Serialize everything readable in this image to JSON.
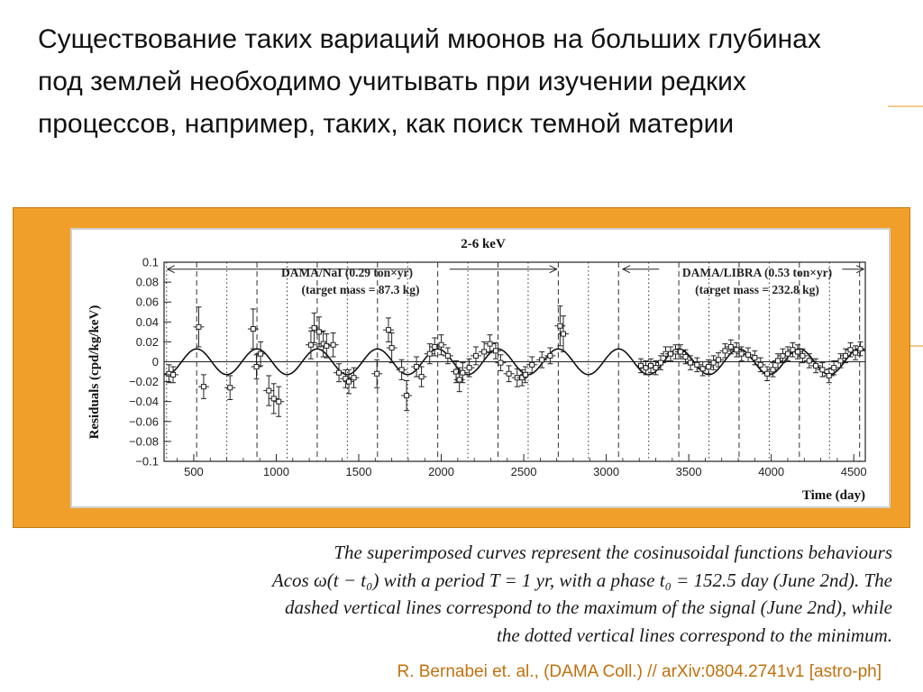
{
  "slide": {
    "title": "Существование таких вариаций мюонов на больших глубинах под землей необходимо учитывать  при изучении редких процессов, например, таких, как поиск темной материи",
    "caption_line1": "The superimposed curves represent the cosinusoidal functions behaviours",
    "caption_line2": "Acos ω(t − t₀) with a period T = 1 yr, with a phase t₀ = 152.5 day (June 2nd). The",
    "caption_line3": "dashed vertical lines correspond to the maximum of the signal (June 2nd), while",
    "caption_line4": "the dotted vertical lines correspond to the minimum.",
    "reference": "R. Bernabei  et. al., (DAMA Coll.) // arXiv:0804.2741v1 [astro-ph]"
  },
  "colors": {
    "frame": "#f0a02a",
    "reference_text": "#c2700e",
    "accent_lines": "#f1c98a"
  },
  "chart_data": {
    "type": "scatter",
    "title": "2-6 keV",
    "xlabel": "Time (day)",
    "ylabel": "Residuals (cpd/kg/keV)",
    "xlim": [
      320,
      4570
    ],
    "ylim": [
      -0.1,
      0.1
    ],
    "x_ticks": [
      500,
      1000,
      1500,
      2000,
      2500,
      3000,
      3500,
      4000,
      4500
    ],
    "y_ticks": [
      0.1,
      0.08,
      0.06,
      0.04,
      0.02,
      0,
      -0.02,
      -0.04,
      -0.06,
      -0.08,
      -0.1
    ],
    "grid": false,
    "annotations": {
      "nai_label": "DAMA/NaI (0.29 ton×yr)",
      "nai_mass": "(target mass = 87.3 kg)",
      "libra_label": "DAMA/LIBRA (0.53 ton×yr)",
      "libra_mass": "(target mass = 232.8 kg)"
    },
    "fit": {
      "amplitude": 0.0129,
      "period_days": 365.25,
      "phase_day": 152.5
    },
    "maxima_days": [
      152.5,
      517.75,
      883,
      1248.25,
      1613.5,
      1978.75,
      2344,
      2709.25,
      3074.5,
      3439.75,
      3805,
      4170.25,
      4535.5
    ],
    "minima_days": [
      335.1,
      700.4,
      1065.6,
      1430.9,
      1796.1,
      2161.4,
      2526.6,
      2891.9,
      3257.1,
      3622.4,
      3987.6,
      4352.9
    ],
    "points": [
      {
        "x": 350,
        "y": -0.012,
        "err": 0.009
      },
      {
        "x": 375,
        "y": -0.013,
        "err": 0.008
      },
      {
        "x": 530,
        "y": 0.035,
        "err": 0.02
      },
      {
        "x": 560,
        "y": -0.025,
        "err": 0.012
      },
      {
        "x": 720,
        "y": -0.026,
        "err": 0.012
      },
      {
        "x": 860,
        "y": 0.033,
        "err": 0.02
      },
      {
        "x": 880,
        "y": -0.005,
        "err": 0.012
      },
      {
        "x": 905,
        "y": 0.008,
        "err": 0.012
      },
      {
        "x": 955,
        "y": -0.029,
        "err": 0.015
      },
      {
        "x": 985,
        "y": -0.037,
        "err": 0.015
      },
      {
        "x": 1015,
        "y": -0.04,
        "err": 0.015
      },
      {
        "x": 1210,
        "y": 0.017,
        "err": 0.014
      },
      {
        "x": 1230,
        "y": 0.034,
        "err": 0.015
      },
      {
        "x": 1260,
        "y": 0.03,
        "err": 0.015
      },
      {
        "x": 1285,
        "y": 0.018,
        "err": 0.013
      },
      {
        "x": 1305,
        "y": 0.016,
        "err": 0.012
      },
      {
        "x": 1345,
        "y": 0.017,
        "err": 0.012
      },
      {
        "x": 1380,
        "y": -0.011,
        "err": 0.009
      },
      {
        "x": 1420,
        "y": -0.017,
        "err": 0.009
      },
      {
        "x": 1440,
        "y": -0.02,
        "err": 0.012
      },
      {
        "x": 1470,
        "y": -0.016,
        "err": 0.01
      },
      {
        "x": 1610,
        "y": -0.012,
        "err": 0.014
      },
      {
        "x": 1680,
        "y": 0.032,
        "err": 0.012
      },
      {
        "x": 1700,
        "y": 0.014,
        "err": 0.015
      },
      {
        "x": 1760,
        "y": -0.008,
        "err": 0.01
      },
      {
        "x": 1790,
        "y": -0.034,
        "err": 0.015
      },
      {
        "x": 1850,
        "y": -0.005,
        "err": 0.01
      },
      {
        "x": 1880,
        "y": -0.015,
        "err": 0.01
      },
      {
        "x": 1930,
        "y": 0.008,
        "err": 0.01
      },
      {
        "x": 1960,
        "y": 0.015,
        "err": 0.009
      },
      {
        "x": 2000,
        "y": 0.017,
        "err": 0.01
      },
      {
        "x": 2040,
        "y": 0.006,
        "err": 0.008
      },
      {
        "x": 2090,
        "y": -0.01,
        "err": 0.011
      },
      {
        "x": 2110,
        "y": -0.018,
        "err": 0.012
      },
      {
        "x": 2130,
        "y": -0.011,
        "err": 0.01
      },
      {
        "x": 2170,
        "y": -0.006,
        "err": 0.009
      },
      {
        "x": 2210,
        "y": 0.006,
        "err": 0.009
      },
      {
        "x": 2260,
        "y": 0.01,
        "err": 0.01
      },
      {
        "x": 2295,
        "y": 0.018,
        "err": 0.009
      },
      {
        "x": 2330,
        "y": 0.011,
        "err": 0.008
      },
      {
        "x": 2360,
        "y": -0.001,
        "err": 0.008
      },
      {
        "x": 2410,
        "y": -0.012,
        "err": 0.008
      },
      {
        "x": 2460,
        "y": -0.016,
        "err": 0.009
      },
      {
        "x": 2490,
        "y": -0.016,
        "err": 0.008
      },
      {
        "x": 2510,
        "y": -0.013,
        "err": 0.008
      },
      {
        "x": 2550,
        "y": -0.003,
        "err": 0.008
      },
      {
        "x": 2610,
        "y": 0.002,
        "err": 0.008
      },
      {
        "x": 2660,
        "y": 0.006,
        "err": 0.008
      },
      {
        "x": 2720,
        "y": 0.036,
        "err": 0.02
      },
      {
        "x": 2740,
        "y": 0.028,
        "err": 0.018
      },
      {
        "x": 3210,
        "y": -0.004,
        "err": 0.007
      },
      {
        "x": 3240,
        "y": -0.006,
        "err": 0.007
      },
      {
        "x": 3270,
        "y": -0.004,
        "err": 0.007
      },
      {
        "x": 3300,
        "y": -0.006,
        "err": 0.007
      },
      {
        "x": 3330,
        "y": -0.001,
        "err": 0.007
      },
      {
        "x": 3360,
        "y": 0.008,
        "err": 0.007
      },
      {
        "x": 3390,
        "y": 0.008,
        "err": 0.007
      },
      {
        "x": 3420,
        "y": 0.01,
        "err": 0.007
      },
      {
        "x": 3450,
        "y": 0.01,
        "err": 0.007
      },
      {
        "x": 3480,
        "y": 0.005,
        "err": 0.007
      },
      {
        "x": 3510,
        "y": -0.001,
        "err": 0.007
      },
      {
        "x": 3550,
        "y": -0.003,
        "err": 0.007
      },
      {
        "x": 3585,
        "y": -0.007,
        "err": 0.007
      },
      {
        "x": 3620,
        "y": -0.005,
        "err": 0.007
      },
      {
        "x": 3650,
        "y": -0.001,
        "err": 0.007
      },
      {
        "x": 3680,
        "y": 0.002,
        "err": 0.007
      },
      {
        "x": 3720,
        "y": 0.011,
        "err": 0.007
      },
      {
        "x": 3755,
        "y": 0.015,
        "err": 0.007
      },
      {
        "x": 3790,
        "y": 0.012,
        "err": 0.007
      },
      {
        "x": 3820,
        "y": 0.008,
        "err": 0.007
      },
      {
        "x": 3860,
        "y": 0.007,
        "err": 0.007
      },
      {
        "x": 3900,
        "y": 0.004,
        "err": 0.007
      },
      {
        "x": 3935,
        "y": -0.003,
        "err": 0.007
      },
      {
        "x": 3975,
        "y": -0.012,
        "err": 0.007
      },
      {
        "x": 4010,
        "y": -0.008,
        "err": 0.007
      },
      {
        "x": 4040,
        "y": 0.001,
        "err": 0.007
      },
      {
        "x": 4070,
        "y": 0.006,
        "err": 0.007
      },
      {
        "x": 4100,
        "y": 0.008,
        "err": 0.007
      },
      {
        "x": 4130,
        "y": 0.012,
        "err": 0.007
      },
      {
        "x": 4160,
        "y": 0.01,
        "err": 0.007
      },
      {
        "x": 4190,
        "y": 0.006,
        "err": 0.007
      },
      {
        "x": 4230,
        "y": 0.001,
        "err": 0.007
      },
      {
        "x": 4270,
        "y": -0.004,
        "err": 0.007
      },
      {
        "x": 4310,
        "y": -0.008,
        "err": 0.007
      },
      {
        "x": 4350,
        "y": -0.014,
        "err": 0.007
      },
      {
        "x": 4380,
        "y": -0.006,
        "err": 0.007
      },
      {
        "x": 4420,
        "y": 0.001,
        "err": 0.007
      },
      {
        "x": 4450,
        "y": 0.006,
        "err": 0.007
      },
      {
        "x": 4480,
        "y": 0.012,
        "err": 0.007
      },
      {
        "x": 4510,
        "y": 0.009,
        "err": 0.007
      },
      {
        "x": 4540,
        "y": 0.013,
        "err": 0.007
      }
    ]
  }
}
